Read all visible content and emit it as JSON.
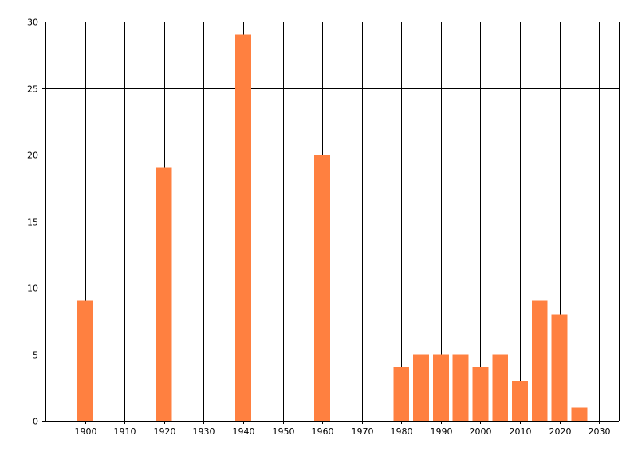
{
  "chart_data": {
    "type": "bar",
    "bar_color": "#ff8040",
    "grid": true,
    "x": [
      1900,
      1920,
      1940,
      1960,
      1980,
      1985,
      1990,
      1995,
      2000,
      2005,
      2010,
      2015,
      2020,
      2025
    ],
    "values": [
      9,
      19,
      29,
      20,
      4,
      5,
      5,
      5,
      4,
      5,
      3,
      9,
      8,
      1
    ],
    "bar_width_years": 4,
    "xlim": [
      1890,
      2035
    ],
    "ylim": [
      0,
      30
    ],
    "x_ticks": [
      1900,
      1910,
      1920,
      1930,
      1940,
      1950,
      1960,
      1970,
      1980,
      1990,
      2000,
      2010,
      2020,
      2030
    ],
    "y_ticks": [
      0,
      5,
      10,
      15,
      20,
      25,
      30
    ]
  }
}
